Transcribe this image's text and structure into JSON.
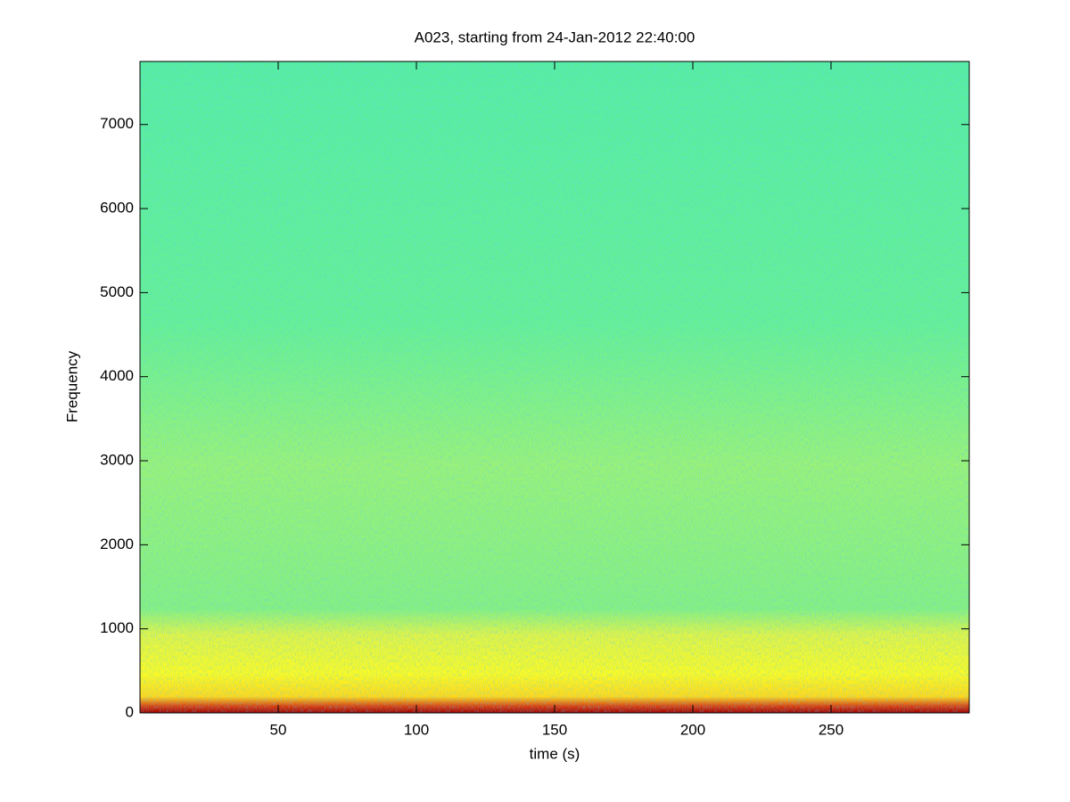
{
  "chart_data": {
    "type": "spectrogram",
    "title": "A023, starting from 24-Jan-2012 22:40:00",
    "xlabel": "time (s)",
    "ylabel": "Frequency",
    "xlim": [
      0,
      300
    ],
    "xticks": [
      50,
      100,
      150,
      200,
      250
    ],
    "ylim": [
      0,
      7750
    ],
    "yticks": [
      0,
      1000,
      2000,
      3000,
      4000,
      5000,
      6000,
      7000
    ]
  }
}
